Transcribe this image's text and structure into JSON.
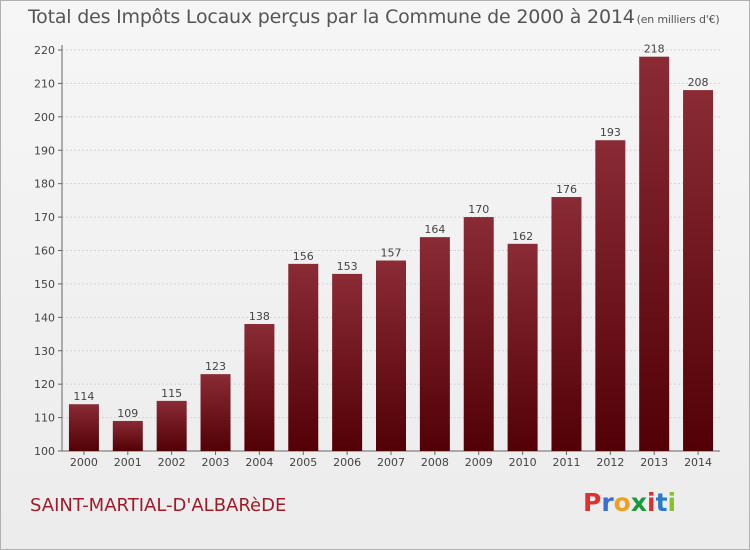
{
  "header": {
    "title": "Total des Impôts Locaux perçus par la Commune de 2000 à 2014",
    "unit": "(en milliers d'€)"
  },
  "footer": {
    "commune": "SAINT-MARTIAL-D'ALBARèDE",
    "logo": "Proxiti"
  },
  "colors": {
    "bar_top": "#8a2b35",
    "bar_bottom": "#520006",
    "commune": "#a01a28",
    "logo_letters": [
      "#e03030",
      "#3a6fd8",
      "#f0a020",
      "#1a9a3a",
      "#d83030",
      "#2a7ac8",
      "#8ac030"
    ]
  },
  "chart_data": {
    "type": "bar",
    "title": "Total des Impôts Locaux perçus par la Commune de 2000 à 2014",
    "xlabel": "",
    "ylabel": "",
    "categories": [
      "2000",
      "2001",
      "2002",
      "2003",
      "2004",
      "2005",
      "2006",
      "2007",
      "2008",
      "2009",
      "2010",
      "2011",
      "2012",
      "2013",
      "2014"
    ],
    "values": [
      114,
      109,
      115,
      123,
      138,
      156,
      153,
      157,
      164,
      170,
      162,
      176,
      193,
      218,
      208
    ],
    "ylim": [
      100,
      220
    ],
    "yticks": [
      100,
      110,
      120,
      130,
      140,
      150,
      160,
      170,
      180,
      190,
      200,
      210,
      220
    ]
  }
}
